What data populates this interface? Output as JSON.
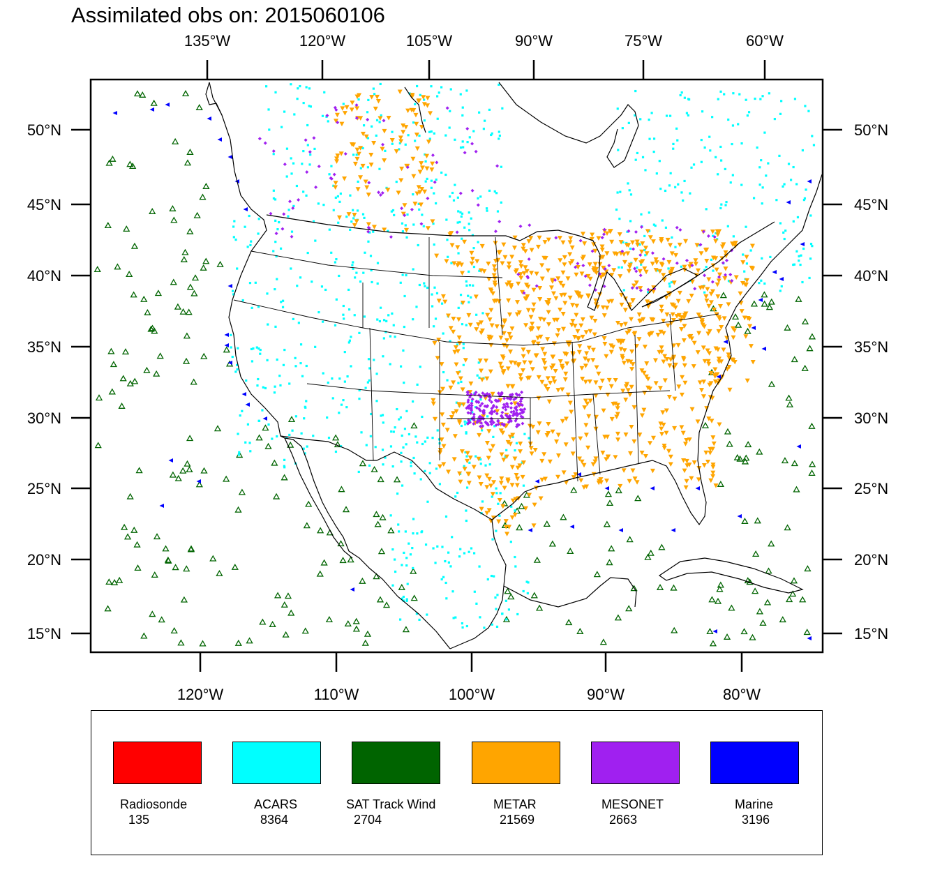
{
  "title": "Assimilated obs on: 2015060106",
  "top_lon_labels": [
    "135°W",
    "120°W",
    "105°W",
    "90°W",
    "75°W",
    "60°W"
  ],
  "bottom_lon_labels": [
    "120°W",
    "110°W",
    "100°W",
    "90°W",
    "80°W"
  ],
  "lat_labels": [
    "50°N",
    "45°N",
    "40°N",
    "35°N",
    "30°N",
    "25°N",
    "20°N",
    "15°N"
  ],
  "legend": [
    {
      "name": "Radiosonde",
      "count": "135",
      "color": "#ff0000"
    },
    {
      "name": "ACARS",
      "count": "8364",
      "color": "#00ffff"
    },
    {
      "name": "SAT Track Wind",
      "count": "2704",
      "color": "#006400"
    },
    {
      "name": "METAR",
      "count": "21569",
      "color": "#ffa500"
    },
    {
      "name": "MESONET",
      "count": "2663",
      "color": "#a020f0"
    },
    {
      "name": "Marine",
      "count": "3196",
      "color": "#0000ff"
    }
  ],
  "colors": {
    "acars": "#00ffff",
    "sat": "#006400",
    "metar": "#ffa500",
    "mesonet": "#a020f0",
    "marine": "#0000ff",
    "outline": "#000000"
  }
}
